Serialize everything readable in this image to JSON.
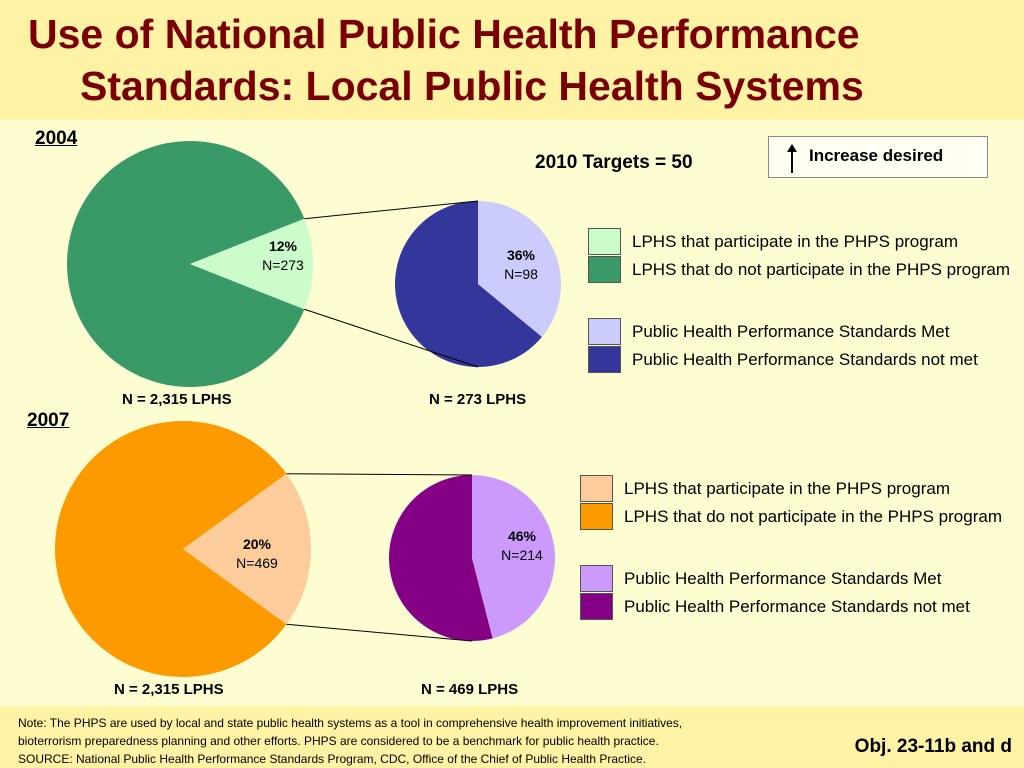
{
  "title": {
    "line1": "Use of National Public Health Performance",
    "line2": "Standards: Local Public Health Systems"
  },
  "targets": "2010 Targets = 50",
  "increase_desired": "Increase desired",
  "colors": {
    "title": "#7a0000",
    "background": "#fefdd2",
    "header_band": "#fef3a5",
    "green_dark": "#3a9a67",
    "green_light": "#ccfccc",
    "blue_dark": "#33369a",
    "blue_light": "#ccccfc",
    "orange_dark": "#fc9a00",
    "orange_light": "#fccc9a",
    "purple_dark": "#840084",
    "purple_light": "#cc99fc"
  },
  "panels": [
    {
      "year": "2004",
      "main_n_label": "N = 2,315 LPHS",
      "sub_n_label": "N = 273 LPHS",
      "main_slice_pct": "12%",
      "main_slice_n": "N=273",
      "sub_slice_pct": "36%",
      "sub_slice_n": "N=98",
      "legend": [
        {
          "label": "LPHS that participate in the PHPS program",
          "color": "#ccfccc"
        },
        {
          "label": "LPHS that do not participate in the PHPS program",
          "color": "#3a9a67"
        },
        {
          "label": "Public Health Performance Standards Met",
          "color": "#ccccfc"
        },
        {
          "label": "Public Health Performance Standards not met",
          "color": "#33369a"
        }
      ]
    },
    {
      "year": "2007",
      "main_n_label": "N = 2,315 LPHS",
      "sub_n_label": "N = 469 LPHS",
      "main_slice_pct": "20%",
      "main_slice_n": "N=469",
      "sub_slice_pct": "46%",
      "sub_slice_n": "N=214",
      "legend": [
        {
          "label": "LPHS that participate in the PHPS program",
          "color": "#fccc9a"
        },
        {
          "label": "LPHS that do not participate in the PHPS program",
          "color": "#fc9a00"
        },
        {
          "label": "Public Health Performance Standards Met",
          "color": "#cc99fc"
        },
        {
          "label": "Public Health Performance Standards not met",
          "color": "#840084"
        }
      ]
    }
  ],
  "chart_data": [
    {
      "type": "pie",
      "categories": [
        "LPHS that participate in the PHPS program",
        "LPHS that do not participate in the PHPS program"
      ],
      "values": [
        12,
        88
      ],
      "counts": [
        273,
        2042
      ],
      "total": 2315
    },
    {
      "type": "pie",
      "categories": [
        "Public Health Performance Standards Met",
        "Public Health Performance Standards not met"
      ],
      "values": [
        36,
        64
      ],
      "counts": [
        98,
        175
      ],
      "total": 273
    },
    {
      "type": "pie",
      "categories": [
        "LPHS that participate in the PHPS program",
        "LPHS that do not participate in the PHPS program"
      ],
      "values": [
        20,
        80
      ],
      "counts": [
        469,
        1846
      ],
      "total": 2315
    },
    {
      "type": "pie",
      "categories": [
        "Public Health Performance Standards Met",
        "Public Health Performance Standards not met"
      ],
      "values": [
        46,
        54
      ],
      "counts": [
        214,
        255
      ],
      "total": 469
    }
  ],
  "note": {
    "line1": "Note: The PHPS are used by local and state public health systems as a tool in comprehensive health improvement initiatives,",
    "line2": "bioterrorism preparedness planning and other efforts. PHPS are considered to be a benchmark for public health practice.",
    "line3": "SOURCE:  National Public Health Performance Standards Program, CDC, Office of the Chief of Public Health Practice."
  },
  "objective": "Obj. 23-11b and d"
}
